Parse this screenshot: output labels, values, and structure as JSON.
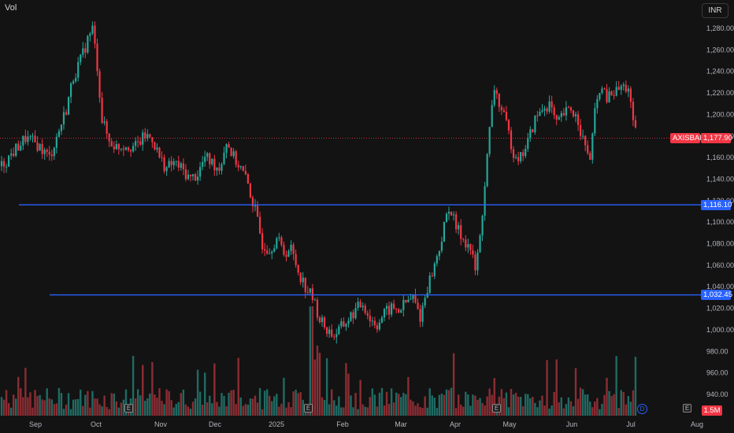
{
  "pane": {
    "volume_label": "Vol",
    "currency": "INR"
  },
  "symbol": "AXISBANK",
  "last_price_label": "1,177.90",
  "volume_value_label": "1.5M",
  "horizontal_lines": [
    {
      "price": 1116.1,
      "label": "1,116.10",
      "color": "#2962ff"
    },
    {
      "price": 1032.45,
      "label": "1,032.45",
      "color": "#2962ff"
    }
  ],
  "markers": {
    "earnings": "E",
    "dividend": "D"
  },
  "colors": {
    "up": "#26a69a",
    "down": "#f23645",
    "up_vol": "#1f6b63",
    "down_vol": "#8c2d33",
    "line": "#2962ff",
    "background": "#131313"
  },
  "chart_data": {
    "type": "candlestick",
    "title": "",
    "y_ticks": [
      "940.00",
      "960.00",
      "980.00",
      "1,000.00",
      "1,020.00",
      "1,040.00",
      "1,060.00",
      "1,080.00",
      "1,100.00",
      "1,120.00",
      "1,140.00",
      "1,160.00",
      "1,180.00",
      "1,200.00",
      "1,220.00",
      "1,240.00",
      "1,260.00",
      "1,280.00"
    ],
    "y_range": [
      935,
      1290
    ],
    "x_ticks": [
      "Sep",
      "Oct",
      "Nov",
      "Dec",
      "2025",
      "Feb",
      "Mar",
      "Apr",
      "May",
      "Jun",
      "Jul",
      "Aug"
    ],
    "last_price": 1177.9,
    "trend_points": [
      [
        0,
        1152
      ],
      [
        6,
        1168
      ],
      [
        10,
        1178
      ],
      [
        15,
        1172
      ],
      [
        20,
        1160
      ],
      [
        24,
        1185
      ],
      [
        27,
        1205
      ],
      [
        30,
        1235
      ],
      [
        33,
        1250
      ],
      [
        36,
        1270
      ],
      [
        38,
        1280
      ],
      [
        40,
        1245
      ],
      [
        42,
        1195
      ],
      [
        45,
        1175
      ],
      [
        48,
        1170
      ],
      [
        52,
        1172
      ],
      [
        56,
        1170
      ],
      [
        60,
        1180
      ],
      [
        63,
        1178
      ],
      [
        66,
        1160
      ],
      [
        69,
        1150
      ],
      [
        72,
        1155
      ],
      [
        75,
        1150
      ],
      [
        79,
        1140
      ],
      [
        82,
        1145
      ],
      [
        85,
        1160
      ],
      [
        88,
        1155
      ],
      [
        91,
        1150
      ],
      [
        94,
        1175
      ],
      [
        97,
        1160
      ],
      [
        100,
        1150
      ],
      [
        103,
        1135
      ],
      [
        106,
        1110
      ],
      [
        109,
        1080
      ],
      [
        112,
        1075
      ],
      [
        115,
        1085
      ],
      [
        118,
        1072
      ],
      [
        121,
        1075
      ],
      [
        124,
        1055
      ],
      [
        127,
        1040
      ],
      [
        130,
        1030
      ],
      [
        133,
        1010
      ],
      [
        136,
        1000
      ],
      [
        139,
        995
      ],
      [
        142,
        1002
      ],
      [
        145,
        1010
      ],
      [
        148,
        1018
      ],
      [
        151,
        1025
      ],
      [
        154,
        1010
      ],
      [
        157,
        1005
      ],
      [
        160,
        1015
      ],
      [
        163,
        1020
      ],
      [
        166,
        1018
      ],
      [
        169,
        1025
      ],
      [
        172,
        1030
      ],
      [
        175,
        1012
      ],
      [
        178,
        1040
      ],
      [
        181,
        1060
      ],
      [
        184,
        1085
      ],
      [
        187,
        1115
      ],
      [
        190,
        1095
      ],
      [
        193,
        1085
      ],
      [
        196,
        1075
      ],
      [
        198,
        1055
      ],
      [
        200,
        1085
      ],
      [
        202,
        1135
      ],
      [
        204,
        1185
      ],
      [
        206,
        1225
      ],
      [
        208,
        1210
      ],
      [
        211,
        1190
      ],
      [
        214,
        1165
      ],
      [
        217,
        1160
      ],
      [
        220,
        1175
      ],
      [
        223,
        1195
      ],
      [
        226,
        1205
      ],
      [
        229,
        1210
      ],
      [
        232,
        1190
      ],
      [
        235,
        1200
      ],
      [
        238,
        1205
      ],
      [
        241,
        1195
      ],
      [
        244,
        1168
      ],
      [
        246,
        1160
      ],
      [
        248,
        1200
      ],
      [
        250,
        1225
      ],
      [
        253,
        1215
      ],
      [
        256,
        1220
      ],
      [
        259,
        1225
      ],
      [
        262,
        1225
      ],
      [
        264,
        1190
      ],
      [
        266,
        1175
      ]
    ]
  }
}
